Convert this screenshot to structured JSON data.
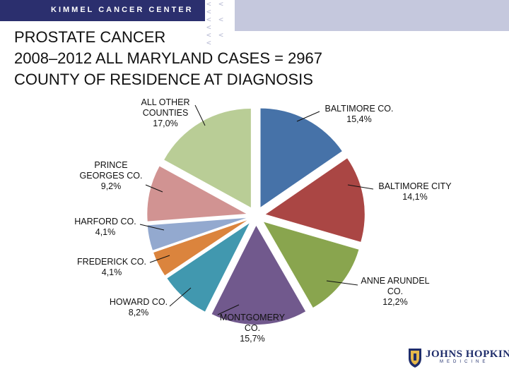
{
  "header": {
    "brand": "KIMMEL CANCER CENTER",
    "chevrons": [
      "< < <",
      "< < <",
      "< < <"
    ]
  },
  "title_lines": [
    "PROSTATE CANCER",
    "2008–2012 ALL MARYLAND CASES = 2967",
    "COUNTY OF RESIDENCE AT DIAGNOSIS"
  ],
  "logo": {
    "name": "JOHNS HOPKINS",
    "sub": "MEDICINE"
  },
  "chart_data": {
    "type": "pie",
    "title": "",
    "slices": [
      {
        "label": [
          "BALTIMORE CO.",
          "15,4%"
        ],
        "value": 15.4,
        "color": "#4672a8"
      },
      {
        "label": [
          "BALTIMORE CITY",
          "14,1%"
        ],
        "value": 14.1,
        "color": "#aa4644"
      },
      {
        "label": [
          "ANNE ARUNDEL",
          "CO.",
          "12,2%"
        ],
        "value": 12.2,
        "color": "#89a54e"
      },
      {
        "label": [
          "MONTGOMERY",
          "CO.",
          "15,7%"
        ],
        "value": 15.7,
        "color": "#71598d"
      },
      {
        "label": [
          "HOWARD CO.",
          "8,2%"
        ],
        "value": 8.2,
        "color": "#4198af"
      },
      {
        "label": [
          "FREDERICK CO.",
          "4,1%"
        ],
        "value": 4.1,
        "color": "#db843d"
      },
      {
        "label": [
          "HARFORD CO.",
          "4,1%"
        ],
        "value": 4.1,
        "color": "#93a9cf"
      },
      {
        "label": [
          "PRINCE",
          "GEORGES CO.",
          "9,2%"
        ],
        "value": 9.2,
        "color": "#d19392"
      },
      {
        "label": [
          "ALL OTHER",
          "COUNTIES",
          "17,0%"
        ],
        "value": 17.0,
        "color": "#b9cd96"
      }
    ],
    "legend": "none",
    "label_style": "leader-lines"
  }
}
